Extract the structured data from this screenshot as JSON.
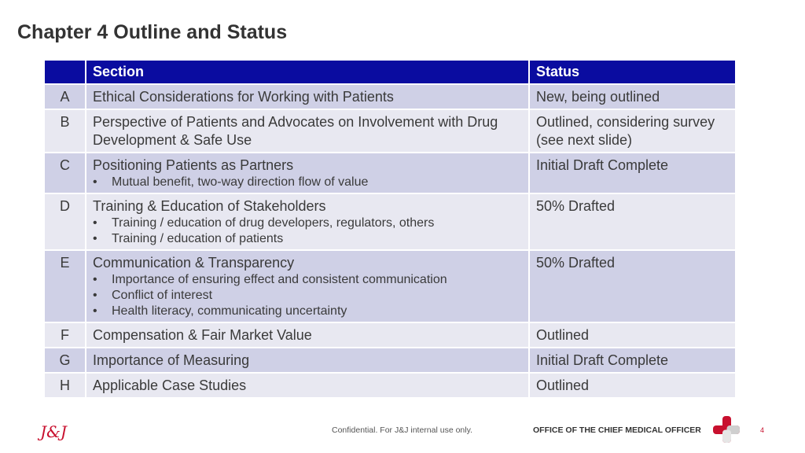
{
  "page": {
    "title": "Chapter 4 Outline and Status"
  },
  "table": {
    "headers": {
      "letter": "",
      "section": "Section",
      "status": "Status"
    },
    "rows": [
      {
        "letter": "A",
        "section": "Ethical Considerations for Working with Patients",
        "bullets": [],
        "status": "New, being outlined"
      },
      {
        "letter": "B",
        "section": "Perspective of Patients and Advocates on Involvement with Drug Development & Safe Use",
        "bullets": [],
        "status": "Outlined, considering survey (see next slide)"
      },
      {
        "letter": "C",
        "section": "Positioning Patients as Partners",
        "bullets": [
          "Mutual benefit, two-way direction flow of value"
        ],
        "status": "Initial Draft Complete"
      },
      {
        "letter": "D",
        "section": "Training & Education of Stakeholders",
        "bullets": [
          "Training / education of drug developers, regulators, others",
          "Training  / education of patients"
        ],
        "status": "50% Drafted"
      },
      {
        "letter": "E",
        "section": "Communication & Transparency",
        "bullets": [
          "Importance of ensuring effect and consistent communication",
          "Conflict of interest",
          "Health literacy, communicating uncertainty"
        ],
        "status": "50% Drafted"
      },
      {
        "letter": "F",
        "section": "Compensation & Fair Market Value",
        "bullets": [],
        "status": "Outlined"
      },
      {
        "letter": "G",
        "section": "Importance of Measuring",
        "bullets": [],
        "status": "Initial Draft Complete"
      },
      {
        "letter": "H",
        "section": "Applicable Case Studies",
        "bullets": [],
        "status": "Outlined"
      }
    ]
  },
  "footer": {
    "logo": "J&J",
    "confidential": "Confidential. For J&J internal use only.",
    "office": "OFFICE OF THE CHIEF MEDICAL OFFICER",
    "page_number": "4"
  },
  "colors": {
    "header_bg": "#0a0ca0",
    "row_odd": "#cfd0e6",
    "row_even": "#e8e8f1",
    "brand_red": "#c8102e"
  },
  "icons": {
    "logo": "jnj-script-logo",
    "cross": "medical-cross-icon"
  }
}
